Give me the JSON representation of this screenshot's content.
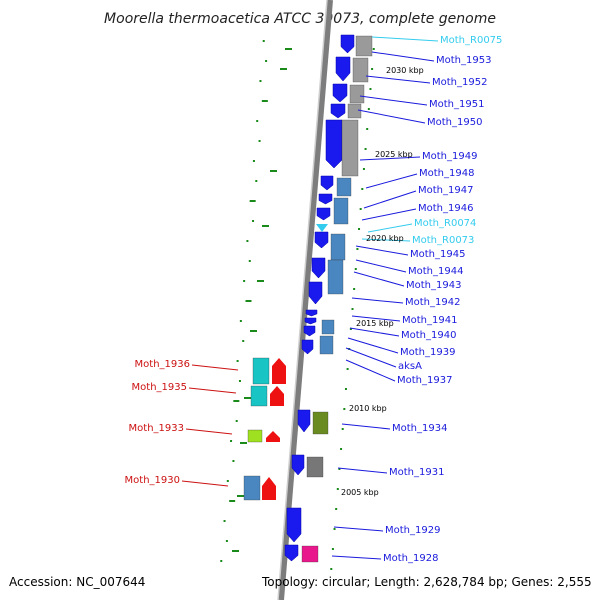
{
  "title": "Moorella thermoacetica ATCC 39073, complete genome",
  "footer": {
    "accession": "Accession: NC_007644",
    "topology": "Topology: circular; Length: 2,628,784 bp; Genes: 2,555"
  },
  "colors": {
    "forward": "#1a1aee",
    "reverse_gray": "#9a9a9a",
    "reverse_blue": "#4a86c0",
    "rna": "#33ccee",
    "red_label": "#cc1111",
    "tick_green": "#1a8a1a"
  },
  "position_labels": [
    "2030 kbp",
    "2025 kbp",
    "2020 kbp",
    "2015 kbp",
    "2010 kbp",
    "2005 kbp"
  ],
  "genes_right": [
    {
      "name": "Moth_R0075",
      "type": "rna"
    },
    {
      "name": "Moth_1953",
      "type": "cds"
    },
    {
      "name": "Moth_1952",
      "type": "cds"
    },
    {
      "name": "Moth_1951",
      "type": "cds"
    },
    {
      "name": "Moth_1950",
      "type": "cds"
    },
    {
      "name": "Moth_1949",
      "type": "cds"
    },
    {
      "name": "Moth_1948",
      "type": "cds"
    },
    {
      "name": "Moth_1947",
      "type": "cds"
    },
    {
      "name": "Moth_1946",
      "type": "cds"
    },
    {
      "name": "Moth_R0074",
      "type": "rna"
    },
    {
      "name": "Moth_R0073",
      "type": "rna"
    },
    {
      "name": "Moth_1945",
      "type": "cds"
    },
    {
      "name": "Moth_1944",
      "type": "cds"
    },
    {
      "name": "Moth_1943",
      "type": "cds"
    },
    {
      "name": "Moth_1942",
      "type": "cds"
    },
    {
      "name": "Moth_1941",
      "type": "cds"
    },
    {
      "name": "Moth_1940",
      "type": "cds"
    },
    {
      "name": "Moth_1939",
      "type": "cds"
    },
    {
      "name": "aksA",
      "type": "cds"
    },
    {
      "name": "Moth_1937",
      "type": "cds"
    },
    {
      "name": "Moth_1934",
      "type": "cds"
    },
    {
      "name": "Moth_1931",
      "type": "cds"
    },
    {
      "name": "Moth_1929",
      "type": "cds"
    },
    {
      "name": "Moth_1928",
      "type": "cds"
    }
  ],
  "genes_left": [
    {
      "name": "Moth_1936"
    },
    {
      "name": "Moth_1935"
    },
    {
      "name": "Moth_1933"
    },
    {
      "name": "Moth_1930"
    }
  ]
}
